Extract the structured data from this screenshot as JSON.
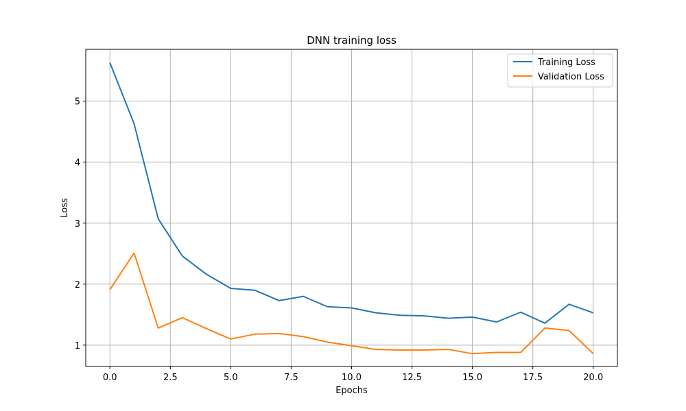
{
  "chart_data": {
    "type": "line",
    "title": "DNN training loss",
    "xlabel": "Epochs",
    "ylabel": "Loss",
    "xlim": [
      -1.0,
      21.0
    ],
    "ylim": [
      0.65,
      5.85
    ],
    "x_ticks": [
      0.0,
      2.5,
      5.0,
      7.5,
      10.0,
      12.5,
      15.0,
      17.5,
      20.0
    ],
    "x_tick_labels": [
      "0.0",
      "2.5",
      "5.0",
      "7.5",
      "10.0",
      "12.5",
      "15.0",
      "17.5",
      "20.0"
    ],
    "y_ticks": [
      1,
      2,
      3,
      4,
      5
    ],
    "y_tick_labels": [
      "1",
      "2",
      "3",
      "4",
      "5"
    ],
    "grid": true,
    "legend_position": "top-right",
    "x": [
      0,
      1,
      2,
      3,
      4,
      5,
      6,
      7,
      8,
      9,
      10,
      11,
      12,
      13,
      14,
      15,
      16,
      17,
      18,
      19,
      20
    ],
    "series": [
      {
        "name": "Training Loss",
        "color": "#1f77b4",
        "values": [
          5.63,
          4.63,
          3.07,
          2.46,
          2.16,
          1.93,
          1.9,
          1.73,
          1.8,
          1.63,
          1.61,
          1.53,
          1.49,
          1.48,
          1.44,
          1.46,
          1.38,
          1.54,
          1.36,
          1.67,
          1.53
        ]
      },
      {
        "name": "Validation Loss",
        "color": "#ff7f0e",
        "values": [
          1.91,
          2.51,
          1.28,
          1.45,
          1.27,
          1.1,
          1.18,
          1.19,
          1.14,
          1.05,
          0.99,
          0.93,
          0.92,
          0.92,
          0.93,
          0.86,
          0.88,
          0.88,
          1.28,
          1.24,
          0.86
        ]
      }
    ]
  }
}
